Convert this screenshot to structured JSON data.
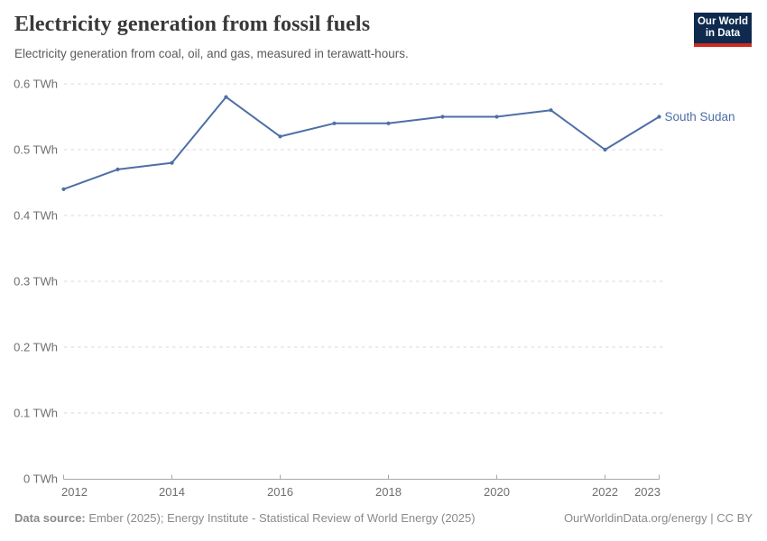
{
  "header": {
    "title": "Electricity generation from fossil fuels",
    "subtitle": "Electricity generation from coal, oil, and gas, measured in terawatt-hours.",
    "logo": {
      "line1": "Our World",
      "line2": "in Data"
    }
  },
  "branding": {
    "logo_bg_color": "#0e2a4e",
    "logo_stripe_color": "#cd2a20"
  },
  "chart_data": {
    "type": "line",
    "title": "Electricity generation from fossil fuels",
    "xlabel": "",
    "ylabel": "TWh",
    "x": [
      2012,
      2013,
      2014,
      2015,
      2016,
      2017,
      2018,
      2019,
      2020,
      2021,
      2022,
      2023
    ],
    "series": [
      {
        "name": "South Sudan",
        "color": "#4e6fa6",
        "values": [
          0.44,
          0.47,
          0.48,
          0.58,
          0.52,
          0.54,
          0.54,
          0.55,
          0.55,
          0.56,
          0.5,
          0.55
        ]
      }
    ],
    "ylim": [
      0,
      0.6
    ],
    "yticks": [
      {
        "value": 0,
        "label": "0 TWh"
      },
      {
        "value": 0.1,
        "label": "0.1 TWh"
      },
      {
        "value": 0.2,
        "label": "0.2 TWh"
      },
      {
        "value": 0.3,
        "label": "0.3 TWh"
      },
      {
        "value": 0.4,
        "label": "0.4 TWh"
      },
      {
        "value": 0.5,
        "label": "0.5 TWh"
      },
      {
        "value": 0.6,
        "label": "0.6 TWh"
      }
    ],
    "xticks": [
      2012,
      2014,
      2016,
      2018,
      2020,
      2022,
      2023
    ],
    "grid": "horizontal-dashed",
    "legend_position": "end-of-line"
  },
  "footer": {
    "source_label": "Data source:",
    "source_text": " Ember (2025); Energy Institute - Statistical Review of World Energy (2025)",
    "link_text": "OurWorldinData.org/energy | CC BY"
  }
}
